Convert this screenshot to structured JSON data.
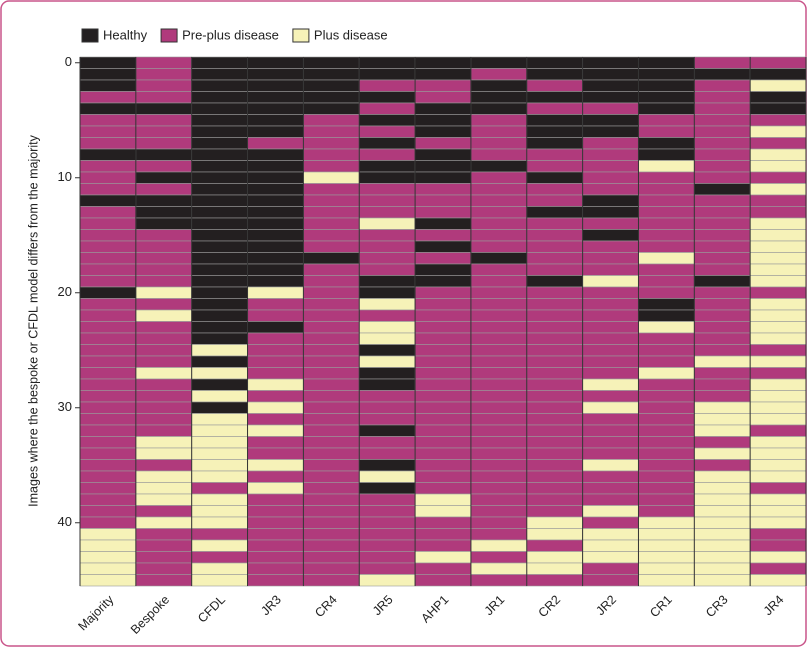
{
  "chart_data": {
    "type": "heatmap",
    "y_label": "Images where the bespoke or CFDL model differs from the majority",
    "series": [
      {
        "name": "Healthy",
        "color": "#231f20"
      },
      {
        "name": "Pre-plus disease",
        "color": "#b03a7c"
      },
      {
        "name": "Plus disease",
        "color": "#f6f2b8"
      }
    ],
    "categories": [
      "Majority",
      "Bespoke",
      "CFDL",
      "JR3",
      "CR4",
      "JR5",
      "AHP1",
      "JR1",
      "CR2",
      "JR2",
      "CR1",
      "CR3",
      "JR4"
    ],
    "rows": 46,
    "yticks": [
      0,
      10,
      20,
      30,
      40
    ],
    "values": [
      [
        0,
        0,
        0,
        1,
        0,
        1,
        1,
        1,
        0,
        1,
        1,
        1,
        0,
        1,
        1,
        1,
        1,
        1,
        1,
        1,
        0,
        1,
        1,
        1,
        1,
        1,
        1,
        1,
        1,
        1,
        1,
        1,
        1,
        1,
        1,
        1,
        1,
        1,
        1,
        1,
        1,
        2,
        2,
        2,
        2,
        2
      ],
      [
        1,
        1,
        1,
        1,
        0,
        1,
        1,
        1,
        0,
        1,
        0,
        1,
        0,
        0,
        0,
        1,
        1,
        1,
        1,
        1,
        2,
        1,
        2,
        1,
        1,
        1,
        1,
        2,
        1,
        1,
        1,
        1,
        1,
        2,
        2,
        1,
        2,
        2,
        2,
        1,
        2,
        1,
        1,
        1,
        1,
        1
      ],
      [
        0,
        0,
        0,
        0,
        0,
        0,
        0,
        0,
        0,
        0,
        0,
        0,
        0,
        0,
        0,
        0,
        0,
        0,
        0,
        0,
        0,
        0,
        0,
        0,
        0,
        2,
        0,
        2,
        0,
        2,
        0,
        2,
        2,
        2,
        2,
        2,
        2,
        1,
        2,
        2,
        2,
        1,
        2,
        1,
        2,
        2
      ],
      [
        0,
        0,
        0,
        0,
        0,
        0,
        0,
        1,
        0,
        0,
        0,
        0,
        0,
        0,
        0,
        0,
        0,
        0,
        0,
        0,
        2,
        1,
        1,
        0,
        1,
        1,
        1,
        1,
        2,
        1,
        2,
        1,
        2,
        1,
        1,
        2,
        1,
        2,
        1,
        1,
        1,
        1,
        1,
        1,
        1,
        1
      ],
      [
        0,
        0,
        0,
        0,
        0,
        1,
        1,
        1,
        1,
        1,
        2,
        1,
        1,
        1,
        1,
        1,
        1,
        0,
        1,
        1,
        1,
        1,
        1,
        1,
        1,
        1,
        1,
        1,
        1,
        1,
        1,
        1,
        1,
        1,
        1,
        1,
        1,
        1,
        1,
        1,
        1,
        1,
        1,
        1,
        1,
        1
      ],
      [
        0,
        0,
        1,
        0,
        1,
        0,
        1,
        0,
        1,
        0,
        0,
        1,
        1,
        1,
        2,
        1,
        1,
        1,
        1,
        0,
        0,
        2,
        1,
        2,
        2,
        0,
        2,
        0,
        0,
        1,
        1,
        1,
        0,
        1,
        1,
        0,
        2,
        0,
        1,
        1,
        1,
        1,
        1,
        1,
        1,
        2
      ],
      [
        0,
        0,
        1,
        1,
        0,
        0,
        0,
        1,
        0,
        0,
        0,
        1,
        1,
        1,
        0,
        1,
        0,
        1,
        0,
        0,
        1,
        1,
        1,
        1,
        1,
        1,
        1,
        1,
        1,
        1,
        1,
        1,
        1,
        1,
        1,
        1,
        1,
        1,
        2,
        2,
        1,
        1,
        1,
        2,
        1,
        1
      ],
      [
        0,
        1,
        0,
        0,
        0,
        1,
        1,
        1,
        1,
        0,
        1,
        1,
        1,
        1,
        1,
        1,
        1,
        0,
        1,
        1,
        1,
        1,
        1,
        1,
        1,
        1,
        1,
        1,
        1,
        1,
        1,
        1,
        1,
        1,
        1,
        1,
        1,
        1,
        1,
        1,
        1,
        1,
        2,
        1,
        2,
        1
      ],
      [
        0,
        0,
        1,
        0,
        1,
        0,
        0,
        0,
        1,
        1,
        0,
        1,
        1,
        0,
        1,
        1,
        1,
        1,
        1,
        0,
        1,
        1,
        1,
        1,
        1,
        1,
        1,
        1,
        1,
        1,
        1,
        1,
        1,
        1,
        1,
        1,
        1,
        1,
        1,
        1,
        2,
        2,
        1,
        2,
        2,
        1
      ],
      [
        0,
        0,
        0,
        0,
        1,
        0,
        0,
        1,
        1,
        1,
        1,
        1,
        0,
        0,
        1,
        0,
        1,
        1,
        1,
        2,
        1,
        1,
        1,
        1,
        1,
        1,
        1,
        1,
        2,
        1,
        2,
        1,
        1,
        1,
        1,
        2,
        1,
        1,
        1,
        2,
        1,
        2,
        2,
        2,
        1,
        1
      ],
      [
        0,
        0,
        0,
        0,
        0,
        1,
        1,
        0,
        0,
        2,
        1,
        1,
        1,
        1,
        1,
        1,
        1,
        2,
        1,
        1,
        1,
        0,
        0,
        2,
        1,
        1,
        1,
        2,
        1,
        1,
        1,
        1,
        1,
        1,
        1,
        1,
        1,
        1,
        1,
        1,
        2,
        2,
        2,
        2,
        2,
        2
      ],
      [
        1,
        0,
        1,
        1,
        1,
        1,
        1,
        1,
        1,
        1,
        1,
        0,
        1,
        1,
        1,
        1,
        1,
        1,
        1,
        0,
        1,
        1,
        1,
        1,
        1,
        1,
        2,
        1,
        1,
        1,
        2,
        2,
        2,
        1,
        2,
        1,
        2,
        2,
        2,
        2,
        2,
        2,
        2,
        2,
        2,
        2
      ],
      [
        1,
        0,
        2,
        0,
        0,
        1,
        2,
        1,
        2,
        2,
        1,
        2,
        1,
        1,
        2,
        2,
        2,
        2,
        2,
        2,
        1,
        2,
        2,
        2,
        2,
        1,
        2,
        1,
        2,
        2,
        2,
        2,
        1,
        2,
        2,
        2,
        2,
        1,
        2,
        2,
        2,
        1,
        1,
        2,
        1,
        2
      ]
    ]
  }
}
